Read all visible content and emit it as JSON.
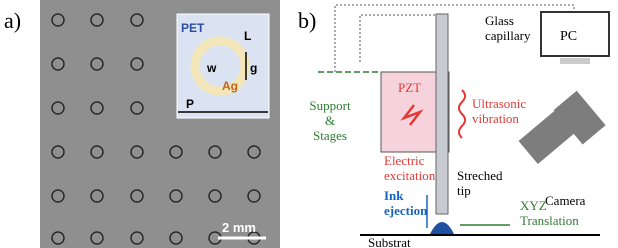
{
  "panel_a": {
    "label": "a)",
    "inset": {
      "material": "PET",
      "length": "L",
      "width": "w",
      "gap": "g",
      "metal": "Ag",
      "pitch": "P"
    },
    "scale_bar": "2 mm"
  },
  "panel_b": {
    "label": "b)",
    "pc": "PC",
    "glass_capillary": [
      "Glass",
      "capillary"
    ],
    "pzt": "PZT",
    "ultrasonic": [
      "Ultrasonic",
      "vibration"
    ],
    "support": [
      "Support",
      "&",
      "Stages"
    ],
    "electric": [
      "Electric",
      "excitation"
    ],
    "tip": [
      "Streched",
      "tip"
    ],
    "camera": "Camera",
    "ink": [
      "Ink",
      "ejection"
    ],
    "xyz": [
      "XYZ",
      "Translation"
    ],
    "substrate": "Substrat"
  }
}
